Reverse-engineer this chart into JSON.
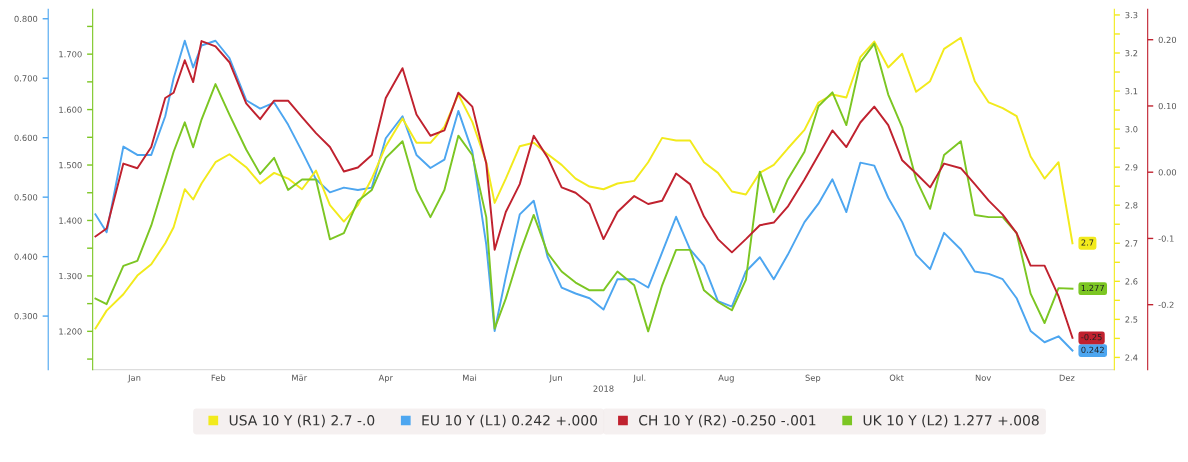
{
  "chart_data": [
    {
      "type": "line",
      "xlabel": "2018",
      "legend": "bottom",
      "grid": false,
      "marker": "none",
      "line_style": "solid",
      "x": [
        "2018-01-02",
        "2018-01-06",
        "2018-01-12",
        "2018-01-17",
        "2018-01-22",
        "2018-01-27",
        "2018-01-30",
        "2018-02-03",
        "2018-02-06",
        "2018-02-09",
        "2018-02-14",
        "2018-02-19",
        "2018-02-25",
        "2018-03-02",
        "2018-03-07",
        "2018-03-12",
        "2018-03-17",
        "2018-03-22",
        "2018-03-27",
        "2018-04-01",
        "2018-04-06",
        "2018-04-11",
        "2018-04-16",
        "2018-04-22",
        "2018-04-27",
        "2018-05-02",
        "2018-05-07",
        "2018-05-12",
        "2018-05-17",
        "2018-05-22",
        "2018-05-25",
        "2018-05-29",
        "2018-06-03",
        "2018-06-08",
        "2018-06-13",
        "2018-06-18",
        "2018-06-23",
        "2018-06-28",
        "2018-07-03",
        "2018-07-08",
        "2018-07-14",
        "2018-07-19",
        "2018-07-24",
        "2018-07-29",
        "2018-08-03",
        "2018-08-08",
        "2018-08-13",
        "2018-08-18",
        "2018-08-23",
        "2018-08-28",
        "2018-09-02",
        "2018-09-07",
        "2018-09-13",
        "2018-09-18",
        "2018-09-23",
        "2018-09-28",
        "2018-10-03",
        "2018-10-08",
        "2018-10-13",
        "2018-10-18",
        "2018-10-23",
        "2018-10-28",
        "2018-11-02",
        "2018-11-08",
        "2018-11-13",
        "2018-11-18",
        "2018-11-23",
        "2018-11-28",
        "2018-12-03",
        "2018-12-08",
        "2018-12-13",
        "2018-12-18"
      ],
      "xlim": [
        "2018-01-01",
        "2019-01-02"
      ],
      "xticks": [
        {
          "value": "2018-01-16",
          "label": "Jan"
        },
        {
          "value": "2018-02-15",
          "label": "Feb"
        },
        {
          "value": "2018-03-16",
          "label": "Mär"
        },
        {
          "value": "2018-04-16",
          "label": "Apr"
        },
        {
          "value": "2018-05-16",
          "label": "Mai"
        },
        {
          "value": "2018-06-16",
          "label": "Jun"
        },
        {
          "value": "2018-07-16",
          "label": "Jul."
        },
        {
          "value": "2018-08-16",
          "label": "Aug"
        },
        {
          "value": "2018-09-16",
          "label": "Sep"
        },
        {
          "value": "2018-10-16",
          "label": "Okt"
        },
        {
          "value": "2018-11-16",
          "label": "Nov"
        },
        {
          "value": "2018-12-16",
          "label": "Dez"
        }
      ],
      "ylim": [
        0.21,
        0.816
      ],
      "yticks": [
        {
          "value": 0.3,
          "label": "0.300"
        },
        {
          "value": 0.4,
          "label": "0.400"
        },
        {
          "value": 0.5,
          "label": "0.500"
        },
        {
          "value": 0.6,
          "label": "0.600"
        },
        {
          "value": 0.7,
          "label": "0.700"
        },
        {
          "value": 0.8,
          "label": "0.800"
        }
      ],
      "y2lim": [
        2.368,
        3.315
      ],
      "y2ticks": [
        {
          "value": 2.4,
          "label": "2.4"
        },
        {
          "value": 2.45,
          "label": null
        },
        {
          "value": 2.5,
          "label": "2.5"
        },
        {
          "value": 2.55,
          "label": null
        },
        {
          "value": 2.6,
          "label": "2.6"
        },
        {
          "value": 2.65,
          "label": null
        },
        {
          "value": 2.7,
          "label": "2.7"
        },
        {
          "value": 2.75,
          "label": null
        },
        {
          "value": 2.8,
          "label": "2.8"
        },
        {
          "value": 2.85,
          "label": null
        },
        {
          "value": 2.9,
          "label": "2.9"
        },
        {
          "value": 2.95,
          "label": null
        },
        {
          "value": 3.0,
          "label": "3.0"
        },
        {
          "value": 3.05,
          "label": null
        },
        {
          "value": 3.1,
          "label": "3.1"
        },
        {
          "value": 3.15,
          "label": null
        },
        {
          "value": 3.2,
          "label": "3.2"
        },
        {
          "value": 3.25,
          "label": null
        },
        {
          "value": 3.3,
          "label": "3.3"
        }
      ],
      "series": [
        {
          "name": "USA 10 Y (R1) 2.7 -.0",
          "color": "#f2ea1c",
          "axis": "y2",
          "values": [
            2.476,
            2.523,
            2.566,
            2.615,
            2.645,
            2.7,
            2.742,
            2.842,
            2.815,
            2.857,
            2.913,
            2.934,
            2.9,
            2.857,
            2.885,
            2.87,
            2.842,
            2.891,
            2.8,
            2.757,
            2.8,
            2.87,
            2.955,
            3.028,
            2.964,
            2.964,
            3.006,
            3.091,
            3.019,
            2.913,
            2.806,
            2.87,
            2.955,
            2.964,
            2.934,
            2.906,
            2.87,
            2.849,
            2.842,
            2.857,
            2.864,
            2.913,
            2.977,
            2.97,
            2.97,
            2.913,
            2.885,
            2.836,
            2.828,
            2.885,
            2.906,
            2.949,
            2.998,
            3.07,
            3.091,
            3.083,
            3.189,
            3.23,
            3.162,
            3.198,
            3.098,
            3.126,
            3.211,
            3.24,
            3.126,
            3.07,
            3.055,
            3.034,
            2.928,
            2.87,
            2.913,
            2.7
          ],
          "value_labels": [
            null,
            null,
            null,
            null,
            null,
            null,
            null,
            null,
            null,
            null,
            null,
            null,
            null,
            null,
            null,
            null,
            null,
            null,
            null,
            null,
            null,
            null,
            null,
            null,
            null,
            null,
            null,
            null,
            null,
            null,
            null,
            null,
            null,
            null,
            null,
            null,
            null,
            null,
            null,
            null,
            null,
            null,
            null,
            null,
            null,
            null,
            null,
            null,
            null,
            null,
            null,
            null,
            null,
            null,
            null,
            null,
            null,
            null,
            null,
            null,
            null,
            null,
            null,
            null,
            null,
            null,
            null,
            null,
            null,
            null,
            null,
            "2.7"
          ]
        },
        {
          "name": "EU 10 Y (L1) 0.242 +.000",
          "color": "#4da6f0",
          "values": [
            0.471,
            0.441,
            0.585,
            0.571,
            0.571,
            0.636,
            0.7,
            0.763,
            0.718,
            0.755,
            0.763,
            0.734,
            0.663,
            0.649,
            0.659,
            0.622,
            0.577,
            0.53,
            0.508,
            0.516,
            0.512,
            0.516,
            0.599,
            0.636,
            0.571,
            0.549,
            0.563,
            0.645,
            0.577,
            0.42,
            0.275,
            0.366,
            0.471,
            0.494,
            0.399,
            0.348,
            0.338,
            0.33,
            0.311,
            0.362,
            0.362,
            0.348,
            0.407,
            0.467,
            0.412,
            0.385,
            0.325,
            0.316,
            0.375,
            0.399,
            0.362,
            0.403,
            0.458,
            0.489,
            0.53,
            0.475,
            0.558,
            0.553,
            0.499,
            0.458,
            0.403,
            0.379,
            0.44,
            0.412,
            0.375,
            0.371,
            0.362,
            0.33,
            0.275,
            0.256,
            0.266,
            0.242
          ],
          "value_labels": [
            null,
            null,
            null,
            null,
            null,
            null,
            null,
            null,
            null,
            null,
            null,
            null,
            null,
            null,
            null,
            null,
            null,
            null,
            null,
            null,
            null,
            null,
            null,
            null,
            null,
            null,
            null,
            null,
            null,
            null,
            null,
            null,
            null,
            null,
            null,
            null,
            null,
            null,
            null,
            null,
            null,
            null,
            null,
            null,
            null,
            null,
            null,
            null,
            null,
            null,
            null,
            null,
            null,
            null,
            null,
            null,
            null,
            null,
            null,
            null,
            null,
            null,
            null,
            null,
            null,
            null,
            null,
            null,
            null,
            null,
            null,
            "0.242"
          ]
        }
      ]
    },
    {
      "type": "line",
      "legend": "bottom",
      "grid": false,
      "marker": "none",
      "line_style": "solid",
      "tick_labels": "y",
      "x": [
        "2018-01-02",
        "2018-01-06",
        "2018-01-12",
        "2018-01-17",
        "2018-01-22",
        "2018-01-27",
        "2018-01-30",
        "2018-02-03",
        "2018-02-06",
        "2018-02-09",
        "2018-02-14",
        "2018-02-19",
        "2018-02-25",
        "2018-03-02",
        "2018-03-07",
        "2018-03-12",
        "2018-03-17",
        "2018-03-22",
        "2018-03-27",
        "2018-04-01",
        "2018-04-06",
        "2018-04-11",
        "2018-04-16",
        "2018-04-22",
        "2018-04-27",
        "2018-05-02",
        "2018-05-07",
        "2018-05-12",
        "2018-05-17",
        "2018-05-22",
        "2018-05-25",
        "2018-05-29",
        "2018-06-03",
        "2018-06-08",
        "2018-06-13",
        "2018-06-18",
        "2018-06-23",
        "2018-06-28",
        "2018-07-03",
        "2018-07-08",
        "2018-07-14",
        "2018-07-19",
        "2018-07-24",
        "2018-07-29",
        "2018-08-03",
        "2018-08-08",
        "2018-08-13",
        "2018-08-18",
        "2018-08-23",
        "2018-08-28",
        "2018-09-02",
        "2018-09-07",
        "2018-09-13",
        "2018-09-18",
        "2018-09-23",
        "2018-09-28",
        "2018-10-03",
        "2018-10-08",
        "2018-10-13",
        "2018-10-18",
        "2018-10-23",
        "2018-10-28",
        "2018-11-02",
        "2018-11-08",
        "2018-11-13",
        "2018-11-18",
        "2018-11-23",
        "2018-11-28",
        "2018-12-03",
        "2018-12-08",
        "2018-12-13",
        "2018-12-18"
      ],
      "xlim": [
        "2018-01-01",
        "2019-01-02"
      ],
      "ylim": [
        1.131,
        1.781
      ],
      "yticks": [
        {
          "value": 1.15,
          "label": null
        },
        {
          "value": 1.2,
          "label": "1.200"
        },
        {
          "value": 1.25,
          "label": null
        },
        {
          "value": 1.3,
          "label": "1.300"
        },
        {
          "value": 1.35,
          "label": null
        },
        {
          "value": 1.4,
          "label": "1.400"
        },
        {
          "value": 1.45,
          "label": null
        },
        {
          "value": 1.5,
          "label": "1.500"
        },
        {
          "value": 1.55,
          "label": null
        },
        {
          "value": 1.6,
          "label": "1.600"
        },
        {
          "value": 1.65,
          "label": null
        },
        {
          "value": 1.7,
          "label": "1.700"
        },
        {
          "value": 1.75,
          "label": null
        }
      ],
      "y2lim": [
        -0.298,
        0.246
      ],
      "y2ticks": [
        {
          "value": -0.2,
          "label": "-0.2"
        },
        {
          "value": -0.1,
          "label": "-0.1"
        },
        {
          "value": 0.0,
          "label": "0.00"
        },
        {
          "value": 0.1,
          "label": "0.10"
        },
        {
          "value": 0.2,
          "label": "0.20"
        }
      ],
      "series": [
        {
          "name": "CH 10 Y (R2) -0.250 -.001",
          "color": "#c0222f",
          "axis": "y2",
          "values": [
            -0.097,
            -0.085,
            0.013,
            0.006,
            0.038,
            0.112,
            0.12,
            0.169,
            0.136,
            0.198,
            0.19,
            0.166,
            0.104,
            0.08,
            0.108,
            0.108,
            0.083,
            0.059,
            0.038,
            0.001,
            0.007,
            0.026,
            0.112,
            0.157,
            0.087,
            0.055,
            0.063,
            0.12,
            0.099,
            0.013,
            -0.117,
            -0.06,
            -0.018,
            0.055,
            0.022,
            -0.023,
            -0.031,
            -0.048,
            -0.101,
            -0.06,
            -0.036,
            -0.048,
            -0.043,
            -0.002,
            -0.018,
            -0.067,
            -0.101,
            -0.121,
            -0.101,
            -0.08,
            -0.076,
            -0.052,
            -0.011,
            0.026,
            0.063,
            0.038,
            0.075,
            0.099,
            0.071,
            0.018,
            -0.002,
            -0.023,
            0.013,
            0.006,
            -0.018,
            -0.043,
            -0.064,
            -0.092,
            -0.141,
            -0.141,
            -0.187,
            -0.25
          ],
          "value_labels": [
            null,
            null,
            null,
            null,
            null,
            null,
            null,
            null,
            null,
            null,
            null,
            null,
            null,
            null,
            null,
            null,
            null,
            null,
            null,
            null,
            null,
            null,
            null,
            null,
            null,
            null,
            null,
            null,
            null,
            null,
            null,
            null,
            null,
            null,
            null,
            null,
            null,
            null,
            null,
            null,
            null,
            null,
            null,
            null,
            null,
            null,
            null,
            null,
            null,
            null,
            null,
            null,
            null,
            null,
            null,
            null,
            null,
            null,
            null,
            null,
            null,
            null,
            null,
            null,
            null,
            null,
            null,
            null,
            null,
            null,
            null,
            "-0.25"
          ]
        },
        {
          "name": "UK 10 Y (L2) 1.277 +.008",
          "color": "#7cc623",
          "values": [
            1.259,
            1.249,
            1.318,
            1.327,
            1.391,
            1.474,
            1.524,
            1.577,
            1.532,
            1.582,
            1.646,
            1.591,
            1.528,
            1.484,
            1.513,
            1.455,
            1.474,
            1.474,
            1.366,
            1.377,
            1.435,
            1.455,
            1.513,
            1.543,
            1.455,
            1.406,
            1.455,
            1.553,
            1.518,
            1.406,
            1.205,
            1.259,
            1.341,
            1.41,
            1.341,
            1.308,
            1.288,
            1.274,
            1.274,
            1.308,
            1.283,
            1.2,
            1.283,
            1.347,
            1.347,
            1.274,
            1.253,
            1.238,
            1.293,
            1.488,
            1.415,
            1.474,
            1.524,
            1.606,
            1.631,
            1.572,
            1.685,
            1.719,
            1.627,
            1.568,
            1.474,
            1.421,
            1.518,
            1.543,
            1.41,
            1.406,
            1.406,
            1.377,
            1.268,
            1.215,
            1.278,
            1.277
          ],
          "value_labels": [
            null,
            null,
            null,
            null,
            null,
            null,
            null,
            null,
            null,
            null,
            null,
            null,
            null,
            null,
            null,
            null,
            null,
            null,
            null,
            null,
            null,
            null,
            null,
            null,
            null,
            null,
            null,
            null,
            null,
            null,
            null,
            null,
            null,
            null,
            null,
            null,
            null,
            null,
            null,
            null,
            null,
            null,
            null,
            null,
            null,
            null,
            null,
            null,
            null,
            null,
            null,
            null,
            null,
            null,
            null,
            null,
            null,
            null,
            null,
            null,
            null,
            null,
            null,
            null,
            null,
            null,
            null,
            null,
            null,
            null,
            null,
            "1.277"
          ]
        }
      ]
    }
  ]
}
